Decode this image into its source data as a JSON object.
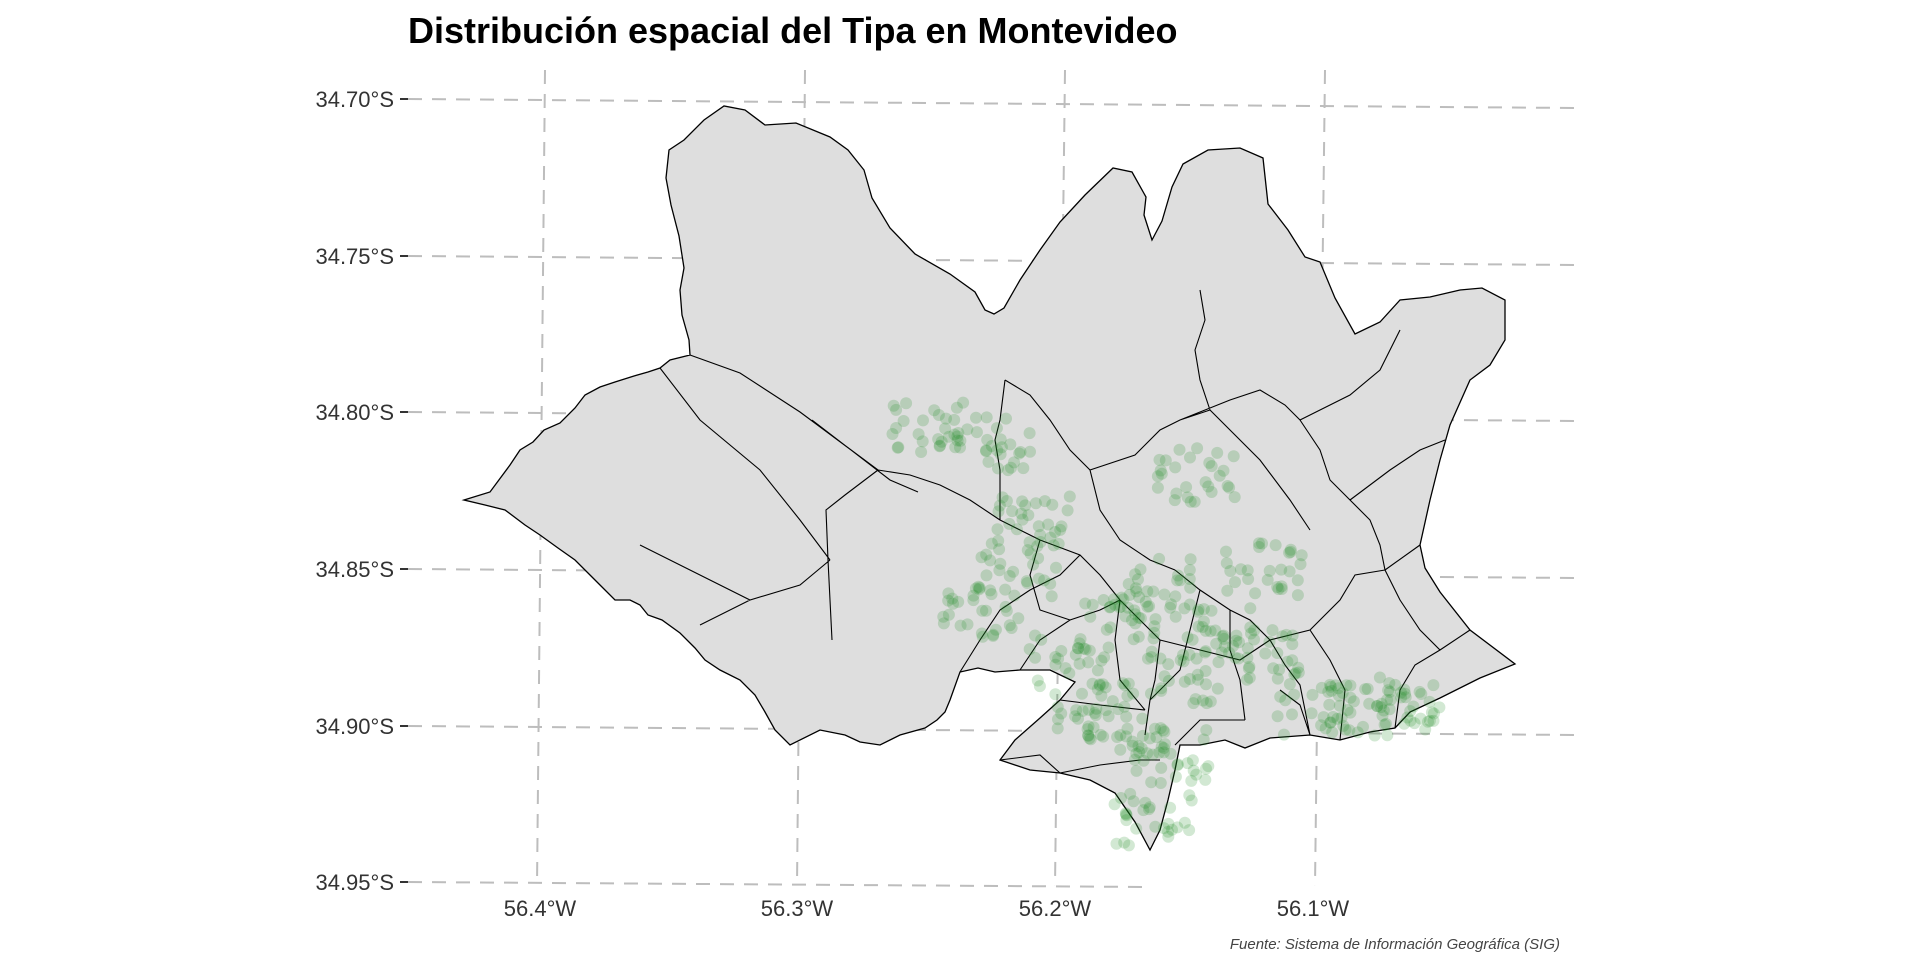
{
  "title": "Distribución espacial del Tipa en Montevideo",
  "caption": "Fuente: Sistema de Información Geográfica (SIG)",
  "colors": {
    "background": "#ffffff",
    "land_fill": "#dedede",
    "boundary": "#000000",
    "graticule": "#bdbdbd",
    "points": "#1e8a22"
  },
  "chart_data": {
    "type": "scatter",
    "title": "Distribución espacial del Tipa en Montevideo",
    "xlabel": "",
    "ylabel": "",
    "x_ticks": [
      "56.4°W",
      "56.3°W",
      "56.2°W",
      "56.1°W"
    ],
    "y_ticks": [
      "34.70°S",
      "34.75°S",
      "34.80°S",
      "34.85°S",
      "34.90°S",
      "34.95°S"
    ],
    "grid": true,
    "legend": "none",
    "point_alpha": 0.2,
    "cluster_centers": [
      [
        -56.175,
        -34.865
      ],
      [
        -56.195,
        -34.88
      ],
      [
        -56.16,
        -34.855
      ],
      [
        -56.15,
        -34.885
      ],
      [
        -56.14,
        -34.87
      ],
      [
        -56.12,
        -34.878
      ],
      [
        -56.1,
        -34.895
      ],
      [
        -56.08,
        -34.895
      ],
      [
        -56.065,
        -34.893
      ],
      [
        -56.21,
        -34.835
      ],
      [
        -56.225,
        -34.81
      ],
      [
        -56.215,
        -34.85
      ],
      [
        -56.23,
        -34.865
      ],
      [
        -56.155,
        -34.91
      ],
      [
        -56.162,
        -34.93
      ],
      [
        -56.172,
        -34.903
      ],
      [
        -56.185,
        -34.895
      ],
      [
        -56.25,
        -34.805
      ],
      [
        -56.145,
        -34.82
      ],
      [
        -56.12,
        -34.85
      ]
    ]
  }
}
